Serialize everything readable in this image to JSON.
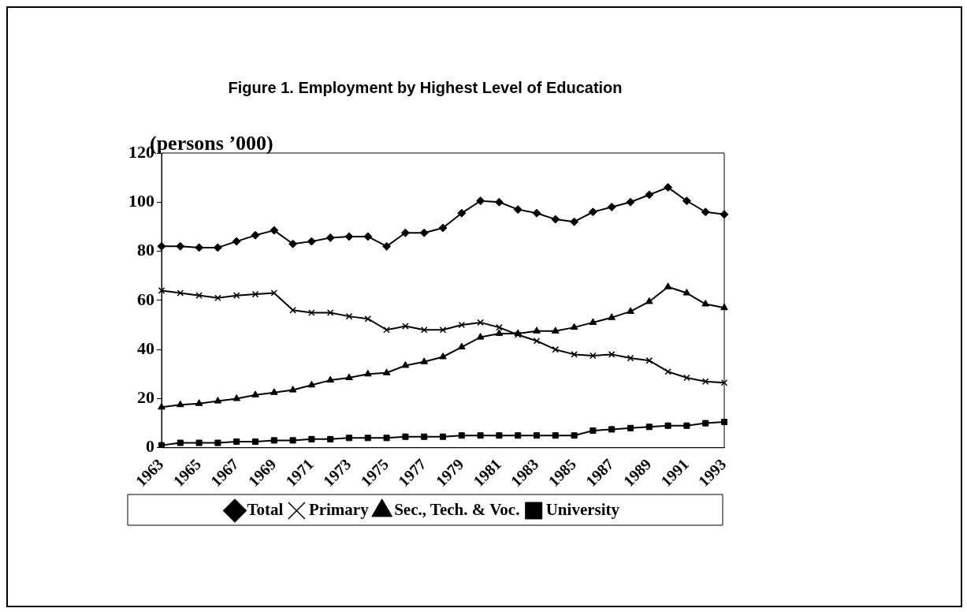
{
  "chart_data": {
    "type": "line",
    "title": "Figure 1. Employment by Highest Level of Education",
    "ylabel": "(persons ’000)",
    "categories": [
      "1963",
      null,
      "1965",
      null,
      "1967",
      null,
      "1969",
      null,
      "1971",
      null,
      "1973",
      null,
      "1975",
      null,
      "1977",
      null,
      "1979",
      null,
      "1981",
      null,
      "1983",
      null,
      "1985",
      null,
      "1987",
      null,
      "1989",
      null,
      "1991",
      null,
      "1993"
    ],
    "series": [
      {
        "name": "Total",
        "color": "#000000",
        "marker": "diamond",
        "values": [
          82,
          82,
          81.5,
          81.5,
          84,
          86.5,
          88.5,
          83,
          84,
          85.5,
          86,
          86,
          82,
          87.5,
          87.5,
          89.5,
          95.5,
          100.5,
          100,
          97,
          95.5,
          93,
          92,
          96,
          98,
          100,
          103,
          106,
          100.5,
          96,
          95
        ]
      },
      {
        "name": "Primary",
        "color": "#000000",
        "marker": "cross",
        "values": [
          64,
          63,
          62,
          61,
          62,
          62.5,
          63,
          56,
          55,
          55,
          53.5,
          52.5,
          48,
          49.5,
          48,
          48,
          50,
          51,
          49,
          46,
          43.5,
          40,
          38,
          37.5,
          38,
          36.5,
          35.5,
          31,
          28.5,
          27,
          26.5
        ]
      },
      {
        "name": "Sec., Tech. & Voc.",
        "color": "#000000",
        "marker": "triangle",
        "values": [
          16.5,
          17.5,
          18,
          19,
          20,
          21.5,
          22.5,
          23.5,
          25.5,
          27.5,
          28.5,
          30,
          30.5,
          33.5,
          35,
          37,
          41,
          45,
          46.5,
          46.5,
          47.5,
          47.5,
          49,
          51,
          53,
          55.5,
          59.5,
          65.5,
          63,
          58.5,
          57
        ]
      },
      {
        "name": "University",
        "color": "#000000",
        "marker": "square",
        "values": [
          1,
          2,
          2,
          2,
          2.5,
          2.5,
          3,
          3,
          3.5,
          3.5,
          4,
          4,
          4,
          4.5,
          4.5,
          4.5,
          5,
          5,
          5,
          5,
          5,
          5,
          5,
          7,
          7.5,
          8,
          8.5,
          9,
          9,
          10,
          10.5
        ]
      }
    ],
    "ylim": [
      0,
      120
    ],
    "yticks": [
      0,
      20,
      40,
      60,
      80,
      100,
      120
    ],
    "grid": false,
    "legend": "bottom",
    "line_style": "solid"
  }
}
